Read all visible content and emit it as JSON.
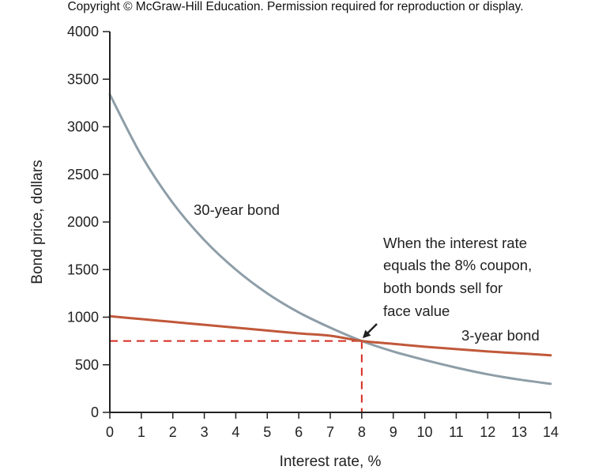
{
  "copyright": "Copyright © McGraw-Hill Education. Permission required for reproduction or display.",
  "colors": {
    "thirty_year": "#8e9ea8",
    "three_year": "#c0583a",
    "guide": "#d62b20",
    "axis": "#222222"
  },
  "chart_data": {
    "type": "line",
    "title": "",
    "xlabel": "Interest rate, %",
    "ylabel": "Bond price, dollars",
    "xlim": [
      0,
      14
    ],
    "ylim": [
      0,
      4000
    ],
    "xticks": [
      0,
      1,
      2,
      3,
      4,
      5,
      6,
      7,
      8,
      9,
      10,
      11,
      12,
      13,
      14
    ],
    "yticks": [
      0,
      500,
      1000,
      1500,
      2000,
      2500,
      3000,
      3500,
      4000
    ],
    "grid": false,
    "series": [
      {
        "name": "30-year bond",
        "x": [
          0,
          1,
          2,
          3,
          4,
          5,
          6,
          7,
          8,
          9,
          10,
          11,
          12,
          13,
          14
        ],
        "values": [
          3340,
          2700,
          2200,
          1810,
          1500,
          1250,
          1050,
          890,
          750,
          640,
          550,
          470,
          400,
          345,
          300
        ],
        "color": "#8e9ea8"
      },
      {
        "name": "3-year bond",
        "x": [
          0,
          1,
          2,
          3,
          4,
          5,
          6,
          7,
          8,
          9,
          10,
          11,
          12,
          13,
          14
        ],
        "values": [
          1010,
          980,
          950,
          920,
          890,
          860,
          830,
          805,
          750,
          720,
          690,
          665,
          640,
          620,
          600
        ],
        "color": "#c0583a"
      }
    ],
    "reference": {
      "x": 8,
      "y": 750
    },
    "annotations": {
      "note_lines": [
        "When the interest rate",
        "equals the 8% coupon,",
        "both bonds sell for",
        "face value"
      ]
    }
  }
}
